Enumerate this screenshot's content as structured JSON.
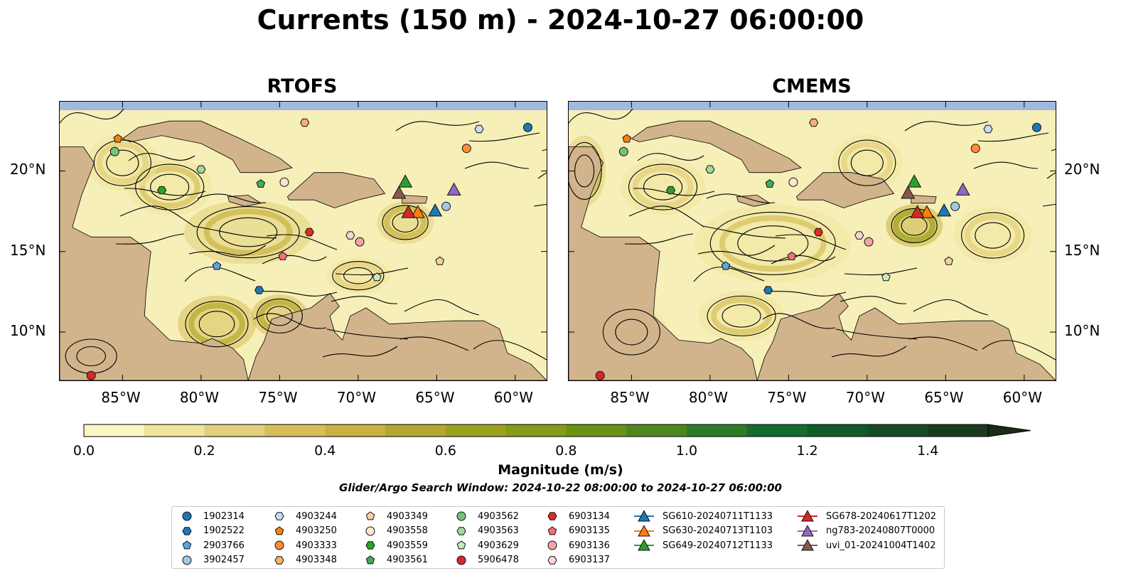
{
  "title": "Currents (150 m) - 2024-10-27 06:00:00",
  "panels": [
    {
      "title": "RTOFS"
    },
    {
      "title": "CMEMS"
    }
  ],
  "x_ticks": [
    "85°W",
    "80°W",
    "75°W",
    "70°W",
    "65°W",
    "60°W"
  ],
  "y_ticks": [
    "20°N",
    "15°N",
    "10°N"
  ],
  "colorbar": {
    "label": "Magnitude (m/s)",
    "ticks": [
      "0.0",
      "0.2",
      "0.4",
      "0.6",
      "0.8",
      "1.0",
      "1.2",
      "1.4"
    ],
    "range": [
      0,
      1.5
    ],
    "extend": "max",
    "colors": [
      "#fbf6c4",
      "#f0e39b",
      "#e2cf79",
      "#d6bf5a",
      "#c8b342",
      "#b4a82e",
      "#9ba31e",
      "#849c16",
      "#6c9214",
      "#4f871f",
      "#2f7a28",
      "#166b2e",
      "#0f5c2b",
      "#164b25",
      "#1b3b1f"
    ]
  },
  "subtitle": "Glider/Argo Search Window: 2024-10-22 08:00:00 to 2024-10-27 06:00:00",
  "legend": [
    {
      "label": "1902314",
      "marker": "circle",
      "color": "#1f77b4"
    },
    {
      "label": "1902522",
      "marker": "hexagon",
      "color": "#1f77b4"
    },
    {
      "label": "2903766",
      "marker": "pentagon",
      "color": "#5aa6dc"
    },
    {
      "label": "3902457",
      "marker": "circle",
      "color": "#9ecae1"
    },
    {
      "label": "4903244",
      "marker": "hexagon",
      "color": "#c6dbef"
    },
    {
      "label": "4903250",
      "marker": "pentagon",
      "color": "#ff7f0e"
    },
    {
      "label": "4903333",
      "marker": "circle",
      "color": "#fd8d3c"
    },
    {
      "label": "4903348",
      "marker": "hexagon",
      "color": "#fdae6b"
    },
    {
      "label": "4903349",
      "marker": "pentagon",
      "color": "#fdd0a2"
    },
    {
      "label": "4903558",
      "marker": "circle",
      "color": "#fee6ce"
    },
    {
      "label": "4903559",
      "marker": "hexagon",
      "color": "#2ca02c"
    },
    {
      "label": "4903561",
      "marker": "pentagon",
      "color": "#41ab5d"
    },
    {
      "label": "4903562",
      "marker": "circle",
      "color": "#74c476"
    },
    {
      "label": "4903563",
      "marker": "hexagon",
      "color": "#a1d99b"
    },
    {
      "label": "4903629",
      "marker": "pentagon",
      "color": "#c7e9c0"
    },
    {
      "label": "5906478",
      "marker": "circle",
      "color": "#d62728"
    },
    {
      "label": "6903134",
      "marker": "hexagon",
      "color": "#de2d26"
    },
    {
      "label": "6903135",
      "marker": "pentagon",
      "color": "#f2707a"
    },
    {
      "label": "6903136",
      "marker": "circle",
      "color": "#f4a3a8"
    },
    {
      "label": "6903137",
      "marker": "hexagon",
      "color": "#fcd5d8"
    },
    {
      "label": "SG610-20240711T1133",
      "marker": "triangle",
      "color": "#1f77b4"
    },
    {
      "label": "SG630-20240713T1103",
      "marker": "triangle",
      "color": "#ff7f0e"
    },
    {
      "label": "SG649-20240712T1133",
      "marker": "triangle",
      "color": "#2ca02c"
    },
    {
      "label": "SG678-20240617T1202",
      "marker": "triangle",
      "color": "#d62728"
    },
    {
      "label": "ng783-20240807T0000",
      "marker": "triangle",
      "color": "#9467bd"
    },
    {
      "label": "uvi_01-20241004T1402",
      "marker": "triangle",
      "color": "#8c564b"
    }
  ],
  "map_extent": {
    "lon": [
      -89,
      -58
    ],
    "lat": [
      7,
      24.3
    ]
  },
  "markers": [
    {
      "id": "1902314",
      "lon": -59.2,
      "lat": 22.7
    },
    {
      "id": "1902522",
      "lon": -76.3,
      "lat": 12.6
    },
    {
      "id": "2903766",
      "lon": -79.0,
      "lat": 14.1
    },
    {
      "id": "3902457",
      "lon": -64.4,
      "lat": 17.8
    },
    {
      "id": "4903244",
      "lon": -62.3,
      "lat": 22.6
    },
    {
      "id": "4903250",
      "lon": -85.3,
      "lat": 22.0
    },
    {
      "id": "4903333",
      "lon": -63.1,
      "lat": 21.4
    },
    {
      "id": "4903348",
      "lon": -73.4,
      "lat": 23.0
    },
    {
      "id": "4903349",
      "lon": -64.8,
      "lat": 14.4
    },
    {
      "id": "4903558",
      "lon": -74.7,
      "lat": 19.3
    },
    {
      "id": "4903559",
      "lon": -82.5,
      "lat": 18.8
    },
    {
      "id": "4903561",
      "lon": -76.2,
      "lat": 19.2
    },
    {
      "id": "4903562",
      "lon": -85.5,
      "lat": 21.2
    },
    {
      "id": "4903563",
      "lon": -80.0,
      "lat": 20.1
    },
    {
      "id": "4903629",
      "lon": -68.8,
      "lat": 13.4
    },
    {
      "id": "5906478",
      "lon": -87.0,
      "lat": 7.3
    },
    {
      "id": "6903134",
      "lon": -73.1,
      "lat": 16.2
    },
    {
      "id": "6903135",
      "lon": -74.8,
      "lat": 14.7
    },
    {
      "id": "6903136",
      "lon": -69.9,
      "lat": 15.6
    },
    {
      "id": "6903137",
      "lon": -70.5,
      "lat": 16.0
    },
    {
      "id": "SG610-20240711T1133",
      "lon": -65.1,
      "lat": 17.5
    },
    {
      "id": "SG630-20240713T1103",
      "lon": -66.2,
      "lat": 17.4
    },
    {
      "id": "SG649-20240712T1133",
      "lon": -67.0,
      "lat": 19.3
    },
    {
      "id": "SG678-20240617T1202",
      "lon": -66.8,
      "lat": 17.4
    },
    {
      "id": "ng783-20240807T0000",
      "lon": -63.9,
      "lat": 18.8
    },
    {
      "id": "uvi_01-20241004T1402",
      "lon": -67.4,
      "lat": 18.6
    }
  ]
}
